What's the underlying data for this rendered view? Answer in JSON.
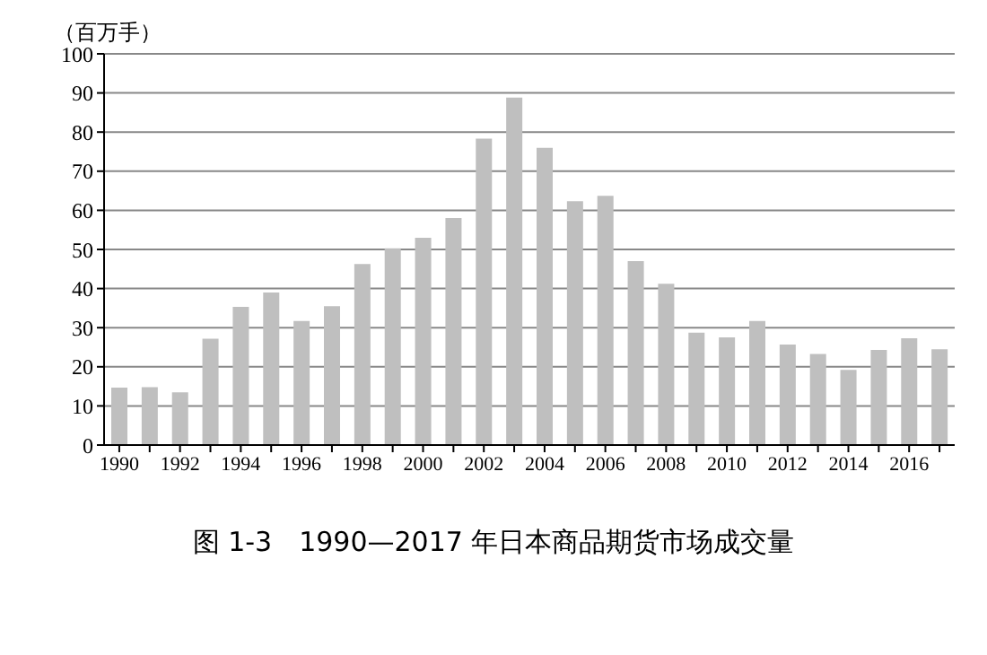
{
  "chart_data": {
    "type": "bar",
    "title": "图 1-3　1990—2017 年日本商品期货市场成交量",
    "ylabel": "（百万手）",
    "categories": [
      "1990",
      null,
      "1992",
      null,
      "1994",
      null,
      "1996",
      null,
      "1998",
      null,
      "2000",
      null,
      "2002",
      null,
      "2004",
      null,
      "2006",
      null,
      "2008",
      null,
      "2010",
      null,
      "2012",
      null,
      "2014",
      null,
      "2016",
      null
    ],
    "values": [
      14.7,
      14.8,
      13.5,
      27.2,
      35.3,
      39,
      31.7,
      35.5,
      46.3,
      50.3,
      53,
      58,
      78.3,
      88.8,
      76,
      62.3,
      63.7,
      47,
      41.2,
      28.7,
      27.5,
      31.7,
      25.7,
      23.3,
      19.2,
      24.3,
      27.3,
      24.5
    ],
    "color": "#bfbfbf",
    "ylim": [
      0,
      100
    ],
    "yticks": [
      0,
      10,
      20,
      30,
      40,
      50,
      60,
      70,
      80,
      90,
      100
    ],
    "grid": "y",
    "legend": false
  }
}
